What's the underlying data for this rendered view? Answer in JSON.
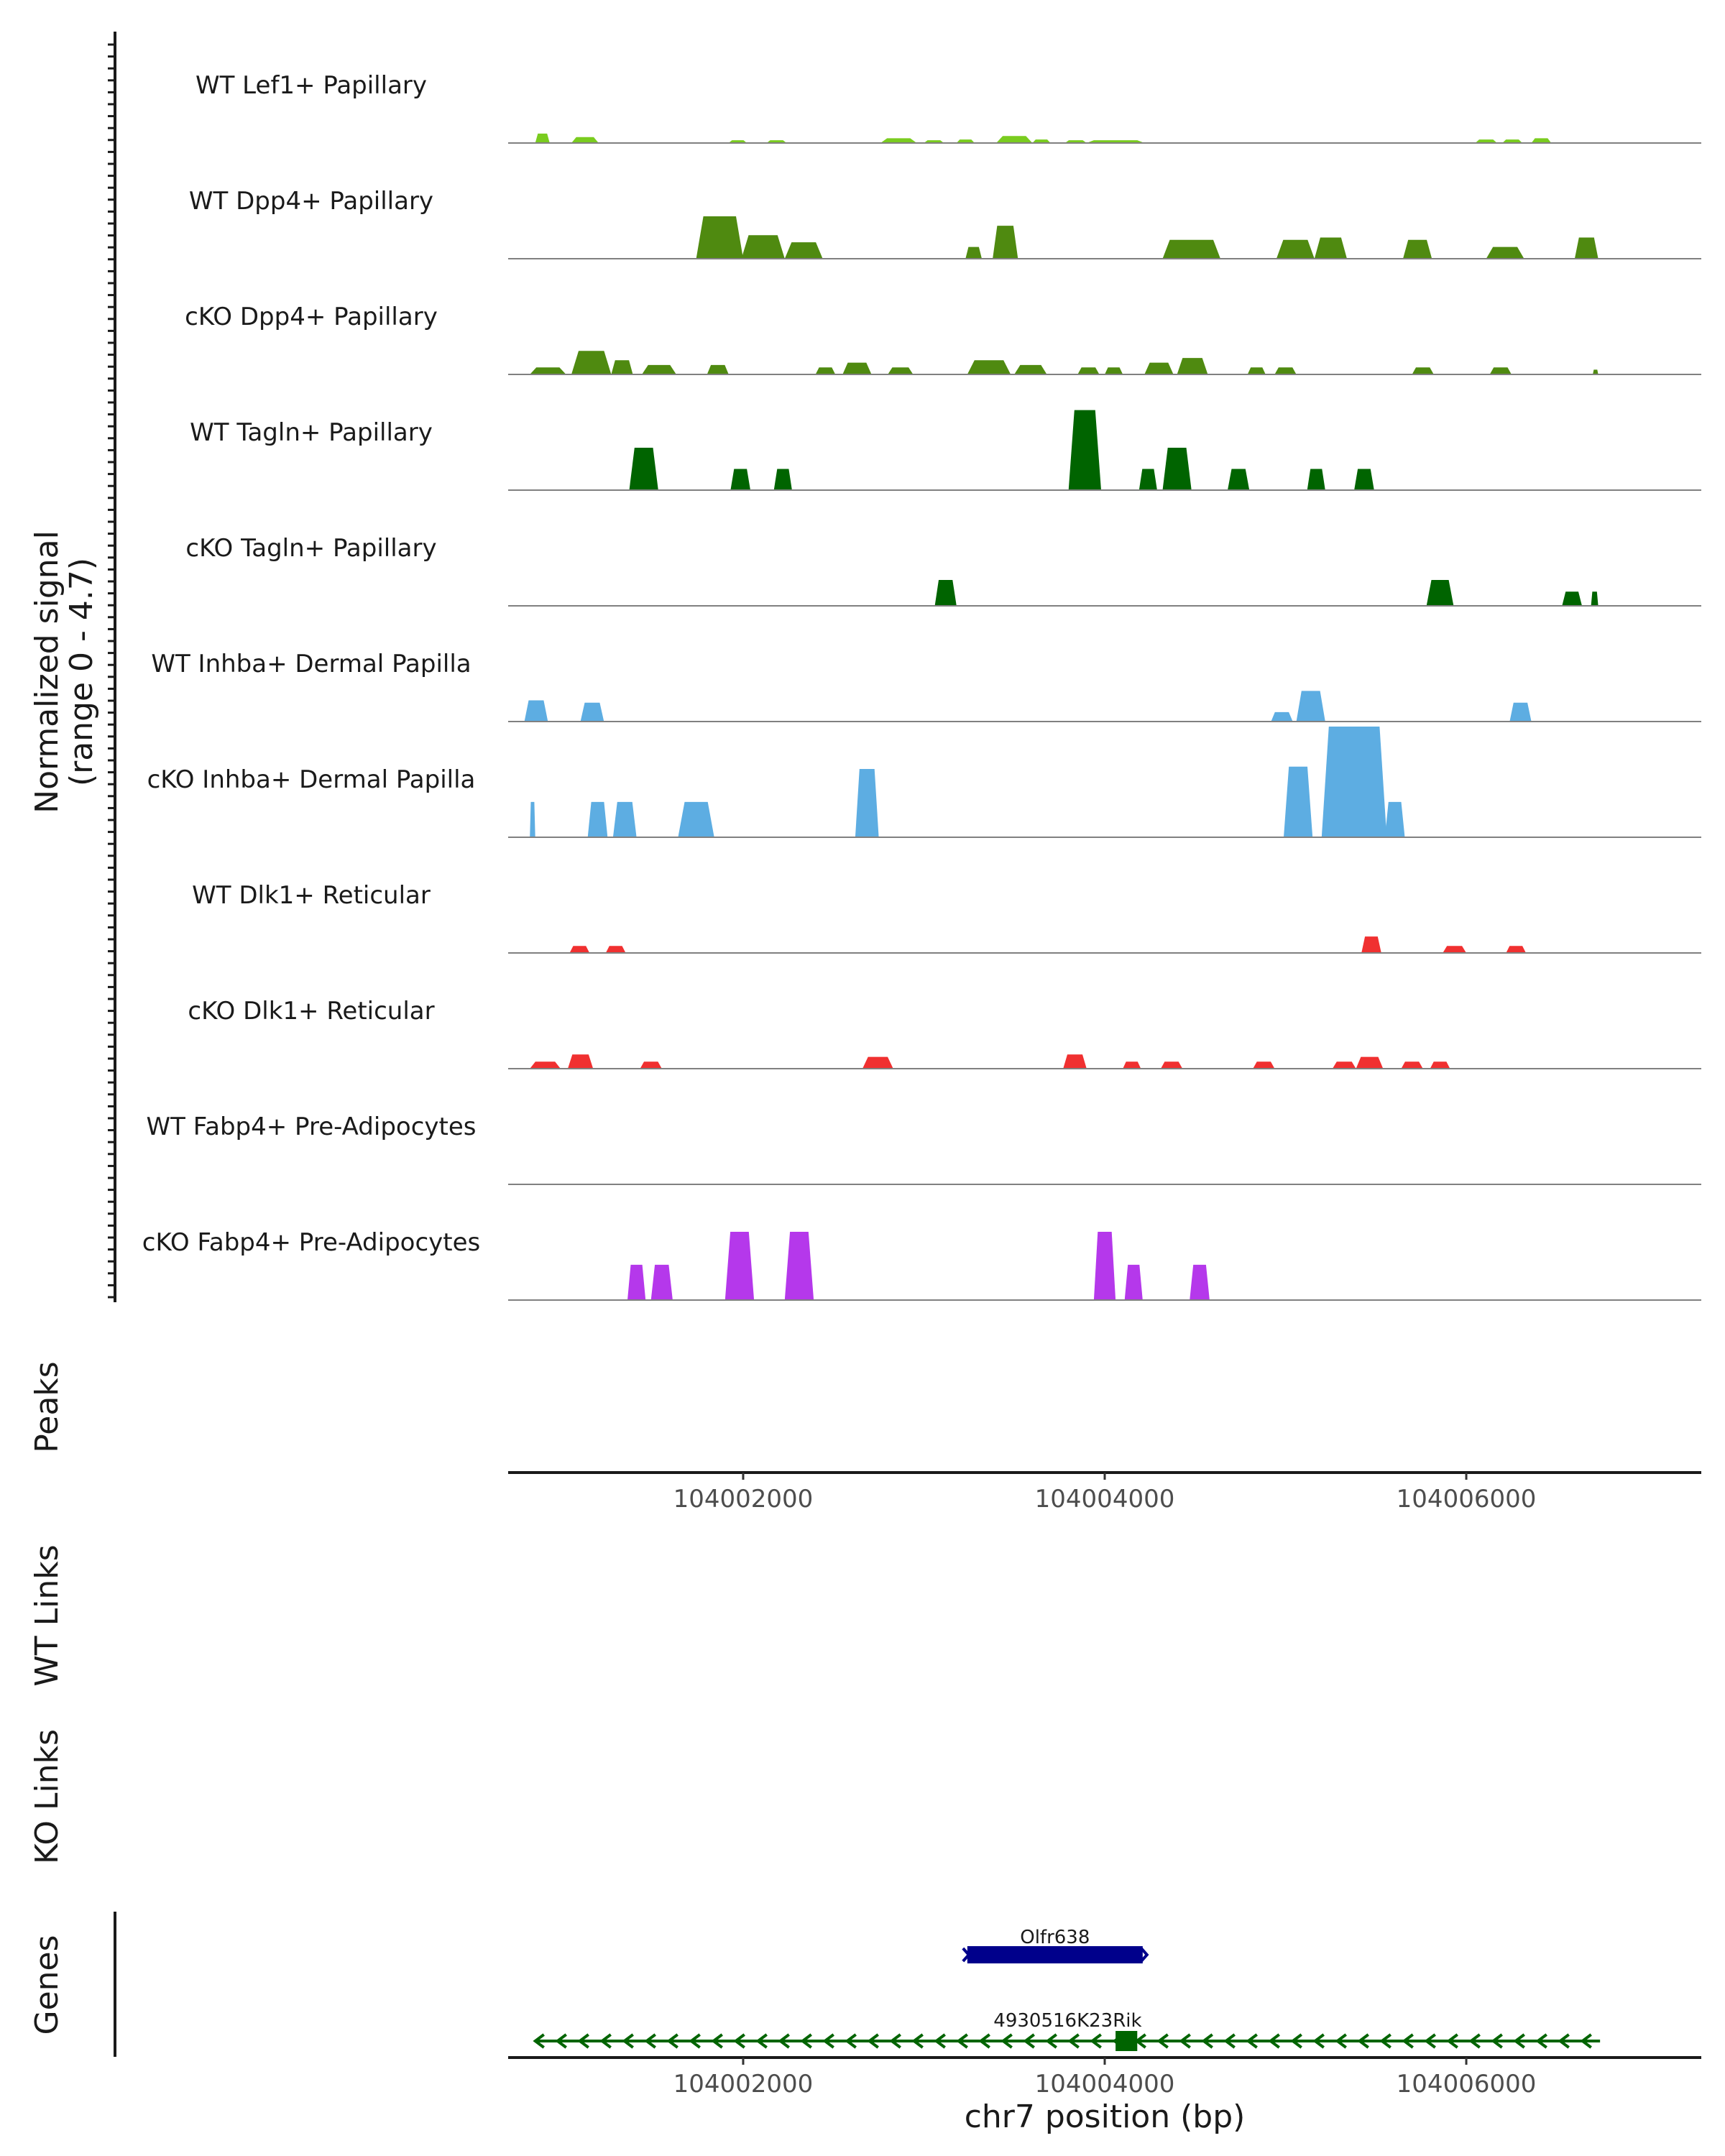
{
  "chart_data": {
    "type": "coverage",
    "chromosome": "chr7",
    "xlabel": "chr7 position (bp)",
    "xlim": [
      104000700,
      104007300
    ],
    "x_ticks": [
      104002000,
      104004000,
      104006000
    ],
    "x_tick_labels": [
      "104002000",
      "104004000",
      "104006000"
    ],
    "ylabel_line1": "Normalized signal",
    "ylabel_line2": "(range 0 - 4.7)",
    "y_range": [
      0,
      4.7
    ],
    "panel_labels": {
      "peaks": "Peaks",
      "wt_links": "WT Links",
      "ko_links": "KO Links",
      "genes": "Genes"
    },
    "tracks": [
      {
        "name": "WT Lef1+ Papillary",
        "color": "#7ACC1F",
        "peaks": [
          [
            104000850,
            104000930,
            0.4
          ],
          [
            104001050,
            104001200,
            0.25
          ],
          [
            104001920,
            104002020,
            0.12
          ],
          [
            104002130,
            104002240,
            0.12
          ],
          [
            104002760,
            104002960,
            0.2
          ],
          [
            104003000,
            104003110,
            0.12
          ],
          [
            104003180,
            104003280,
            0.15
          ],
          [
            104003400,
            104003600,
            0.3
          ],
          [
            104003600,
            104003700,
            0.15
          ],
          [
            104003780,
            104003900,
            0.12
          ],
          [
            104003900,
            104004220,
            0.12
          ],
          [
            104006050,
            104006170,
            0.15
          ],
          [
            104006200,
            104006310,
            0.15
          ],
          [
            104006360,
            104006470,
            0.2
          ]
        ]
      },
      {
        "name": "WT Dpp4+ Papillary",
        "color": "#4F8A10",
        "peaks": [
          [
            104001740,
            104002000,
            1.8
          ],
          [
            104001990,
            104002230,
            1.0
          ],
          [
            104002230,
            104002440,
            0.7
          ],
          [
            104003230,
            104003320,
            0.5
          ],
          [
            104003380,
            104003520,
            1.4
          ],
          [
            104004320,
            104004640,
            0.8
          ],
          [
            104004950,
            104005160,
            0.8
          ],
          [
            104005160,
            104005340,
            0.9
          ],
          [
            104005650,
            104005810,
            0.8
          ],
          [
            104006110,
            104006320,
            0.5
          ],
          [
            104006600,
            104006730,
            0.9
          ]
        ]
      },
      {
        "name": "cKO Dpp4+ Papillary",
        "color": "#4F8A10",
        "peaks": [
          [
            104000820,
            104001020,
            0.3
          ],
          [
            104001050,
            104001270,
            1.0
          ],
          [
            104001270,
            104001390,
            0.6
          ],
          [
            104001440,
            104001630,
            0.4
          ],
          [
            104001800,
            104001920,
            0.4
          ],
          [
            104002400,
            104002510,
            0.3
          ],
          [
            104002550,
            104002710,
            0.5
          ],
          [
            104002800,
            104002940,
            0.3
          ],
          [
            104003240,
            104003480,
            0.6
          ],
          [
            104003500,
            104003680,
            0.4
          ],
          [
            104003850,
            104003970,
            0.3
          ],
          [
            104004000,
            104004100,
            0.3
          ],
          [
            104004220,
            104004380,
            0.5
          ],
          [
            104004400,
            104004570,
            0.7
          ],
          [
            104004790,
            104004890,
            0.3
          ],
          [
            104004940,
            104005060,
            0.3
          ],
          [
            104005700,
            104005820,
            0.3
          ],
          [
            104006130,
            104006250,
            0.3
          ],
          [
            104006700,
            104006730,
            0.2
          ]
        ]
      },
      {
        "name": "WT Tagln+ Papillary",
        "color": "#006400",
        "peaks": [
          [
            104001370,
            104001530,
            1.8
          ],
          [
            104001930,
            104002040,
            0.9
          ],
          [
            104002170,
            104002270,
            0.9
          ],
          [
            104003800,
            104003980,
            3.4
          ],
          [
            104004190,
            104004290,
            0.9
          ],
          [
            104004320,
            104004480,
            1.8
          ],
          [
            104004680,
            104004800,
            0.9
          ],
          [
            104005120,
            104005220,
            0.9
          ],
          [
            104005380,
            104005490,
            0.9
          ]
        ]
      },
      {
        "name": "cKO Tagln+ Papillary",
        "color": "#006400",
        "peaks": [
          [
            104003060,
            104003180,
            1.1
          ],
          [
            104005780,
            104005930,
            1.1
          ],
          [
            104006530,
            104006640,
            0.6
          ],
          [
            104006690,
            104006730,
            0.6
          ]
        ]
      },
      {
        "name": "WT Inhba+ Dermal Papilla",
        "color": "#5DADE2",
        "peaks": [
          [
            104000790,
            104000920,
            0.9
          ],
          [
            104001100,
            104001230,
            0.8
          ],
          [
            104004920,
            104005040,
            0.4
          ],
          [
            104005060,
            104005220,
            1.3
          ],
          [
            104006240,
            104006360,
            0.8
          ]
        ]
      },
      {
        "name": "cKO Inhba+ Dermal Papilla",
        "color": "#5DADE2",
        "peaks": [
          [
            104000820,
            104000850,
            1.5
          ],
          [
            104001140,
            104001250,
            1.5
          ],
          [
            104001280,
            104001410,
            1.5
          ],
          [
            104001640,
            104001840,
            1.5
          ],
          [
            104002620,
            104002750,
            2.9
          ],
          [
            104004990,
            104005150,
            3.0
          ],
          [
            104005200,
            104005560,
            4.7
          ],
          [
            104005550,
            104005660,
            1.5
          ]
        ]
      },
      {
        "name": "WT Dlk1+ Reticular",
        "color": "#F03030",
        "peaks": [
          [
            104001040,
            104001150,
            0.3
          ],
          [
            104001240,
            104001350,
            0.3
          ],
          [
            104005420,
            104005530,
            0.7
          ],
          [
            104005870,
            104006000,
            0.3
          ],
          [
            104006220,
            104006330,
            0.3
          ]
        ]
      },
      {
        "name": "cKO Dlk1+ Reticular",
        "color": "#F03030",
        "peaks": [
          [
            104000820,
            104000990,
            0.3
          ],
          [
            104001030,
            104001170,
            0.6
          ],
          [
            104001430,
            104001550,
            0.3
          ],
          [
            104002660,
            104002830,
            0.5
          ],
          [
            104003770,
            104003900,
            0.6
          ],
          [
            104004100,
            104004200,
            0.3
          ],
          [
            104004310,
            104004430,
            0.3
          ],
          [
            104004820,
            104004940,
            0.3
          ],
          [
            104005260,
            104005390,
            0.3
          ],
          [
            104005390,
            104005540,
            0.5
          ],
          [
            104005640,
            104005760,
            0.3
          ],
          [
            104005800,
            104005910,
            0.3
          ]
        ]
      },
      {
        "name": "WT Fabp4+ Pre-Adipocytes",
        "color": "#B538EB",
        "peaks": []
      },
      {
        "name": "cKO Fabp4+ Pre-Adipocytes",
        "color": "#B538EB",
        "peaks": [
          [
            104001360,
            104001460,
            1.5
          ],
          [
            104001490,
            104001610,
            1.5
          ],
          [
            104001900,
            104002060,
            2.9
          ],
          [
            104002230,
            104002390,
            2.9
          ],
          [
            104003940,
            104004060,
            2.9
          ],
          [
            104004110,
            104004210,
            1.5
          ],
          [
            104004470,
            104004580,
            1.5
          ]
        ]
      }
    ],
    "genes": [
      {
        "name": "Olfr638",
        "start": 104003240,
        "end": 104004210,
        "strand": "+",
        "color": "#00008B",
        "row": 0
      },
      {
        "name": "4930516K23Rik",
        "start": 104000850,
        "end": 104006740,
        "strand": "-",
        "color": "#006400",
        "row": 1,
        "exon_start": 104004060,
        "exon_end": 104004180
      }
    ]
  }
}
